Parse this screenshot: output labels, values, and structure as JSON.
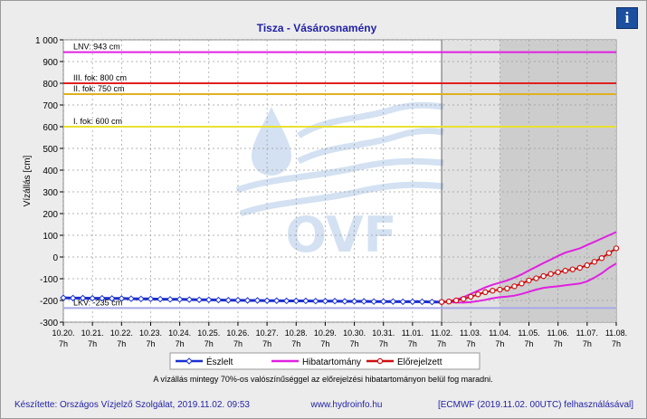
{
  "chart_data": {
    "type": "line",
    "title": "Tisza - Vásárosnamény",
    "ylabel": "Vízállás [cm]",
    "ylim": [
      -300,
      1000
    ],
    "y_ticks": [
      "1 000",
      "900",
      "800",
      "700",
      "600",
      "500",
      "400",
      "300",
      "200",
      "100",
      "0",
      "-100",
      "-200",
      "-300"
    ],
    "y_tick_values": [
      1000,
      900,
      800,
      700,
      600,
      500,
      400,
      300,
      200,
      100,
      0,
      -100,
      -200,
      -300
    ],
    "x_dates": [
      "10.20.",
      "10.21.",
      "10.22.",
      "10.23.",
      "10.24.",
      "10.25.",
      "10.26.",
      "10.27.",
      "10.28.",
      "10.29.",
      "10.30.",
      "10.31.",
      "11.01.",
      "11.02.",
      "11.03.",
      "11.04.",
      "11.05.",
      "11.06.",
      "11.07.",
      "11.08."
    ],
    "x_hour": "7h",
    "reference_lines": [
      {
        "label": "LNV: 943 cm",
        "value": 943,
        "color": "#e020e0"
      },
      {
        "label": "III. fok: 800 cm",
        "value": 800,
        "color": "#e02020"
      },
      {
        "label": "II. fok: 750 cm",
        "value": 750,
        "color": "#e0b020"
      },
      {
        "label": "I. fok: 600 cm",
        "value": 600,
        "color": "#e8e030"
      },
      {
        "label": "LKV: -235 cm",
        "value": -235,
        "color": "#a8a8e8"
      }
    ],
    "observed_day_offsets": [
      0,
      0.33,
      0.67,
      1,
      1.33,
      1.67,
      2,
      2.33,
      2.67,
      3,
      3.33,
      3.67,
      4,
      4.33,
      4.67,
      5,
      5.33,
      5.67,
      6,
      6.33,
      6.67,
      7,
      7.33,
      7.67,
      8,
      8.33,
      8.67,
      9,
      9.33,
      9.67,
      10,
      10.33,
      10.67,
      11,
      11.33,
      11.67,
      12,
      12.33,
      12.67,
      13
    ],
    "observed": [
      -188,
      -189,
      -189,
      -190,
      -190,
      -191,
      -191,
      -192,
      -193,
      -193,
      -194,
      -195,
      -195,
      -196,
      -197,
      -197,
      -198,
      -199,
      -199,
      -200,
      -200,
      -201,
      -201,
      -202,
      -202,
      -202,
      -203,
      -203,
      -203,
      -204,
      -204,
      -204,
      -205,
      -205,
      -205,
      -206,
      -206,
      -206,
      -207,
      -207
    ],
    "forecast_day_offsets": [
      13,
      13.25,
      13.5,
      13.75,
      14,
      14.25,
      14.5,
      14.75,
      15,
      15.25,
      15.5,
      15.75,
      16,
      16.25,
      16.5,
      16.75,
      17,
      17.25,
      17.5,
      17.75,
      18,
      18.25,
      18.5,
      18.75,
      19
    ],
    "forecast": [
      -207,
      -205,
      -200,
      -193,
      -183,
      -172,
      -162,
      -155,
      -150,
      -145,
      -135,
      -122,
      -108,
      -98,
      -88,
      -78,
      -70,
      -63,
      -57,
      -50,
      -38,
      -22,
      -5,
      18,
      40
    ],
    "uncertainty_upper": [
      -207,
      -204,
      -196,
      -185,
      -170,
      -155,
      -140,
      -128,
      -118,
      -108,
      -95,
      -80,
      -62,
      -45,
      -28,
      -12,
      5,
      20,
      30,
      40,
      55,
      70,
      85,
      100,
      115
    ],
    "uncertainty_lower": [
      -207,
      -208,
      -209,
      -210,
      -208,
      -203,
      -197,
      -190,
      -185,
      -182,
      -178,
      -170,
      -160,
      -150,
      -142,
      -138,
      -135,
      -130,
      -126,
      -122,
      -112,
      -95,
      -75,
      -50,
      -30
    ],
    "legend": [
      {
        "label": "Észlelt",
        "color": "#1a2fd0"
      },
      {
        "label": "Hibatartomány",
        "color": "#e020e0"
      },
      {
        "label": "Előrejelzett",
        "color": "#cc1010"
      }
    ],
    "note": "A vízállás mintegy 70%-os valószínűséggel az előrejelzési hibatartományon belül fog maradni.",
    "colors": {
      "observed": "#1a2fd0",
      "band": "#e020e0",
      "forecast": "#cc1010",
      "shade_light": "#e2e2e2",
      "shade_dark": "#cdcdcd"
    }
  },
  "watermark": "OVF",
  "footer": {
    "author": "Készítette: Országos Vízjelző Szolgálat, 2019.11.02. 09:53",
    "website": "www.hydroinfo.hu",
    "model": "[ECMWF (2019.11.02. 00UTC) felhasználásával]"
  },
  "info_icon": "i"
}
